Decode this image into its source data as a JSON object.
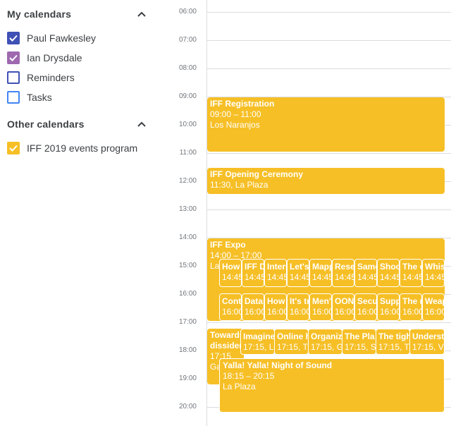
{
  "sidebar": {
    "my_calendars": {
      "title": "My calendars",
      "items": [
        {
          "label": "Paul Fawkesley",
          "color": "#3f51b5",
          "checked": true
        },
        {
          "label": "Ian Drysdale",
          "color": "#9e69af",
          "checked": true
        },
        {
          "label": "Reminders",
          "color": "#3f51b5",
          "checked": false
        },
        {
          "label": "Tasks",
          "color": "#4285f4",
          "checked": false
        }
      ]
    },
    "other_calendars": {
      "title": "Other calendars",
      "items": [
        {
          "label": "IFF 2019 events program",
          "color": "#f6bf26",
          "checked": true
        }
      ]
    }
  },
  "time_labels": [
    "06:00",
    "07:00",
    "08:00",
    "09:00",
    "10:00",
    "11:00",
    "12:00",
    "13:00",
    "14:00",
    "15:00",
    "16:00",
    "17:00",
    "18:00",
    "19:00",
    "20:00"
  ],
  "event_color": "#f6bf26",
  "events": {
    "registration": {
      "title": "IFF Registration",
      "time": "09:00 – 11:00",
      "location": "Los Naranjos"
    },
    "opening": {
      "title": "IFF Opening Ceremony",
      "time": "11:30, La Plaza"
    },
    "expo": {
      "title": "IFF Expo",
      "time": "14:00 – 17:00",
      "location": "La"
    },
    "row1": [
      {
        "title": "How",
        "time": "14:45"
      },
      {
        "title": "IFF D",
        "time": "14:45"
      },
      {
        "title": "Intern",
        "time": "14:45"
      },
      {
        "title": "Let's",
        "time": "14:45"
      },
      {
        "title": "Mapp",
        "time": "14:45"
      },
      {
        "title": "Resea",
        "time": "14:45"
      },
      {
        "title": "Same",
        "time": "14:45"
      },
      {
        "title": "Shoo",
        "time": "14:45"
      },
      {
        "title": "The c",
        "time": "14:45"
      },
      {
        "title": "Whis",
        "time": "14:45"
      }
    ],
    "row2": [
      {
        "title": "Cont",
        "time": "16:00"
      },
      {
        "title": "Data",
        "time": "16:00"
      },
      {
        "title": "How",
        "time": "16:00"
      },
      {
        "title": "It's tr",
        "time": "16:00"
      },
      {
        "title": "Men's",
        "time": "16:00"
      },
      {
        "title": "OONI",
        "time": "16:00"
      },
      {
        "title": "Secu",
        "time": "16:00"
      },
      {
        "title": "Supp",
        "time": "16:00"
      },
      {
        "title": "The n",
        "time": "16:00"
      },
      {
        "title": "Weap",
        "time": "16:00"
      }
    ],
    "towards": {
      "title": "Towards",
      "line2": "dissider",
      "time": "17:15",
      "location": "Ga"
    },
    "row3": [
      {
        "title": "Imagine",
        "time": "17:15, L"
      },
      {
        "title": "Online h",
        "time": "17:15, T"
      },
      {
        "title": "Organiz",
        "time": "17:15, G"
      },
      {
        "title": "The Pla",
        "time": "17:15, S"
      },
      {
        "title": "The tigh",
        "time": "17:15, T"
      },
      {
        "title": "Underst",
        "time": "17:15, V"
      }
    ],
    "yalla": {
      "title": "Yalla! Yalla! Night of Sound",
      "time": "18:15 – 20:15",
      "location": "La Plaza"
    }
  }
}
